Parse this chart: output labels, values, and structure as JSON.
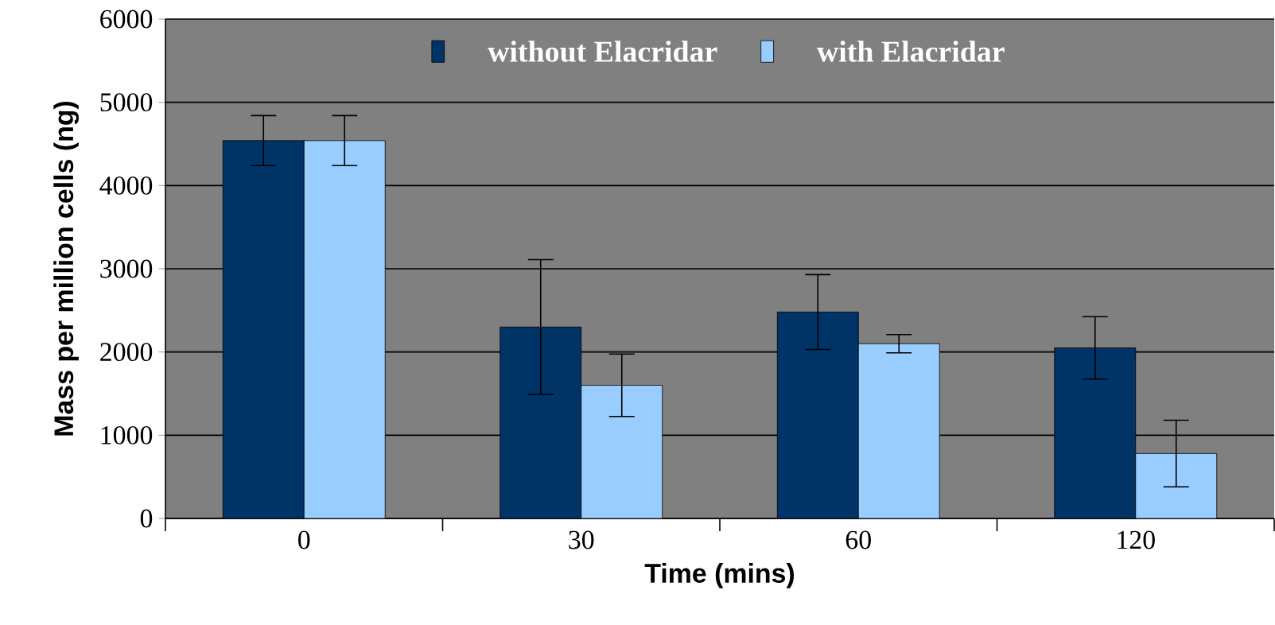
{
  "chart_data": {
    "type": "bar",
    "xlabel": "Time (mins)",
    "ylabel": "Mass per million cells (ng)",
    "categories": [
      "0",
      "30",
      "60",
      "120"
    ],
    "series": [
      {
        "name": "without Elacridar",
        "color": "#003366",
        "values": [
          4540,
          2300,
          2480,
          2050
        ],
        "errors": [
          300,
          810,
          450,
          375
        ]
      },
      {
        "name": "with Elacridar",
        "color": "#99ccff",
        "values": [
          4540,
          1600,
          2100,
          780
        ],
        "errors": [
          300,
          375,
          110,
          400
        ]
      }
    ],
    "ylim": [
      0,
      6000
    ],
    "yticks": [
      0,
      1000,
      2000,
      3000,
      4000,
      5000,
      6000
    ],
    "grid": "y",
    "legend": "top"
  }
}
